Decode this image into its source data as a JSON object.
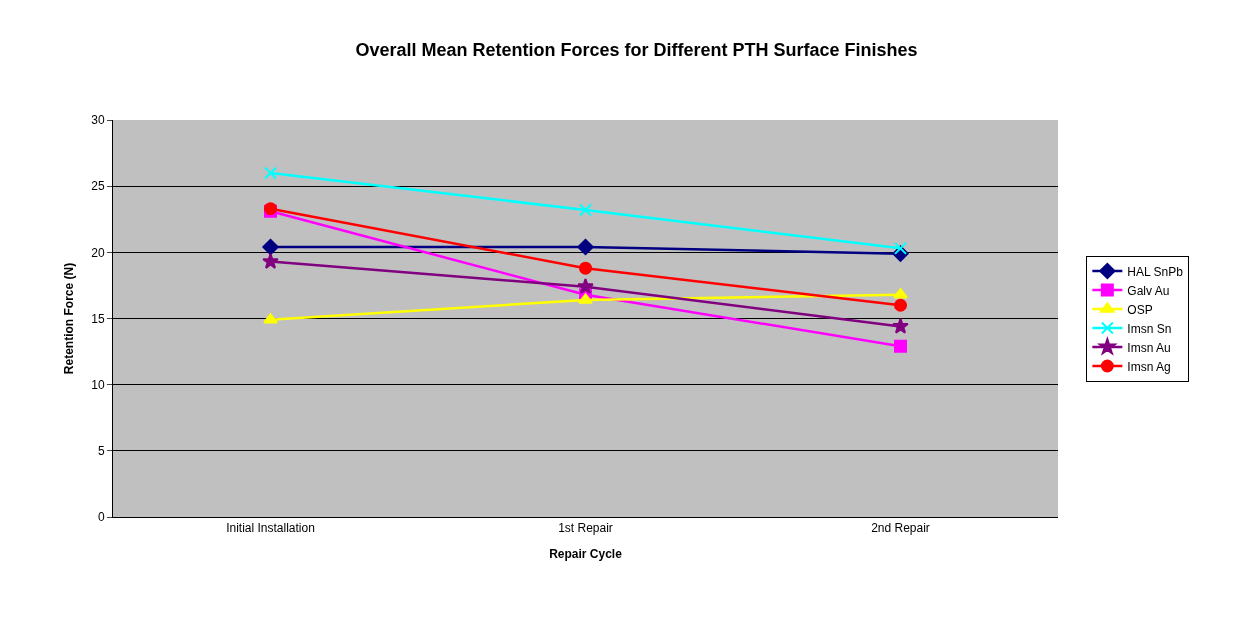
{
  "chart_data": {
    "type": "line",
    "title": "Overall Mean Retention Forces for Different PTH Surface Finishes",
    "xlabel": "Repair Cycle",
    "ylabel": "Retention Force (N)",
    "categories": [
      "Initial Installation",
      "1st Repair",
      "2nd Repair"
    ],
    "series": [
      {
        "name": "HAL SnPb",
        "color": "#000080",
        "marker": "diamond",
        "values": [
          20.4,
          20.4,
          19.9
        ]
      },
      {
        "name": "Galv Au",
        "color": "#ff00ff",
        "marker": "square",
        "values": [
          23.1,
          16.8,
          12.9
        ]
      },
      {
        "name": "OSP",
        "color": "#ffff00",
        "marker": "triangle",
        "values": [
          14.9,
          16.4,
          16.8
        ]
      },
      {
        "name": "Imsn Sn",
        "color": "#00ffff",
        "marker": "cross",
        "values": [
          26.0,
          23.2,
          20.3
        ]
      },
      {
        "name": "Imsn Au",
        "color": "#800080",
        "marker": "star",
        "values": [
          19.3,
          17.4,
          14.4
        ]
      },
      {
        "name": "Imsn Ag",
        "color": "#ff0000",
        "marker": "circle",
        "values": [
          23.3,
          18.8,
          16.0
        ]
      }
    ],
    "ylim": [
      0,
      30
    ],
    "yticks": [
      0,
      5,
      10,
      15,
      20,
      25,
      30
    ],
    "grid": "y",
    "legend": "right",
    "line_style": "solid"
  }
}
